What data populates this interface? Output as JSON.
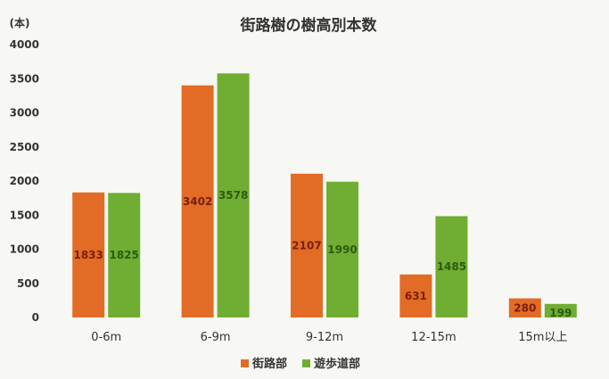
{
  "chart_data": {
    "type": "bar",
    "title": "街路樹の樹高別本数",
    "ylabel": "(本)",
    "xlabel": "",
    "categories": [
      "0-6m",
      "6-9m",
      "9-12m",
      "12-15m",
      "15m以上"
    ],
    "series": [
      {
        "name": "街路部",
        "color": "#e26b26",
        "values": [
          1833,
          3402,
          2107,
          631,
          280
        ]
      },
      {
        "name": "遊歩道部",
        "color": "#6fae32",
        "values": [
          1825,
          3578,
          1990,
          1485,
          199
        ]
      }
    ],
    "ylim": [
      0,
      4000
    ],
    "yticks": [
      0,
      500,
      1000,
      1500,
      2000,
      2500,
      3000,
      3500,
      4000
    ],
    "grid": false,
    "legend": "bottom-center"
  }
}
